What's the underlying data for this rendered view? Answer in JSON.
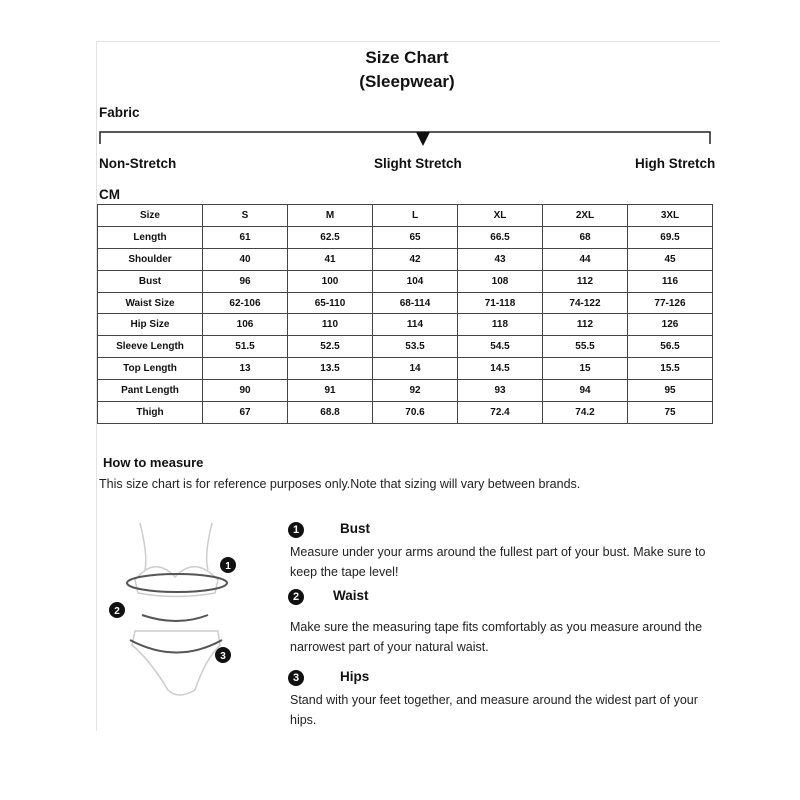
{
  "title": "Size Chart",
  "subtitle": "(Sleepwear)",
  "fabric": {
    "label": "Fabric",
    "scale": [
      "Non-Stretch",
      "Slight Stretch",
      "High Stretch"
    ],
    "selected": "Slight Stretch"
  },
  "unit": "CM",
  "table": {
    "header": [
      "Size",
      "S",
      "M",
      "L",
      "XL",
      "2XL",
      "3XL"
    ],
    "rows": [
      [
        "Length",
        "61",
        "62.5",
        "65",
        "66.5",
        "68",
        "69.5"
      ],
      [
        "Shoulder",
        "40",
        "41",
        "42",
        "43",
        "44",
        "45"
      ],
      [
        "Bust",
        "96",
        "100",
        "104",
        "108",
        "112",
        "116"
      ],
      [
        "Waist Size",
        "62-106",
        "65-110",
        "68-114",
        "71-118",
        "74-122",
        "77-126"
      ],
      [
        "Hip Size",
        "106",
        "110",
        "114",
        "118",
        "112",
        "126"
      ],
      [
        "Sleeve Length",
        "51.5",
        "52.5",
        "53.5",
        "54.5",
        "55.5",
        "56.5"
      ],
      [
        "Top Length",
        "13",
        "13.5",
        "14",
        "14.5",
        "15",
        "15.5"
      ],
      [
        "Pant Length",
        "90",
        "91",
        "92",
        "93",
        "94",
        "95"
      ],
      [
        "Thigh",
        "67",
        "68.8",
        "70.6",
        "72.4",
        "74.2",
        "75"
      ]
    ]
  },
  "measure": {
    "heading": "How to measure",
    "note": "This size chart is for reference purposes only.Note that sizing will vary between brands.",
    "steps": [
      {
        "num": "1",
        "title": "Bust",
        "text": "Measure under your arms around the fullest part of your bust. Make sure to keep the tape level!"
      },
      {
        "num": "2",
        "title": "Waist",
        "text": "Make sure the measuring tape fits comfortably as you measure around the narrowest part of your natural waist."
      },
      {
        "num": "3",
        "title": "Hips",
        "text": "Stand with your feet together, and measure around the widest part of your hips."
      }
    ]
  }
}
